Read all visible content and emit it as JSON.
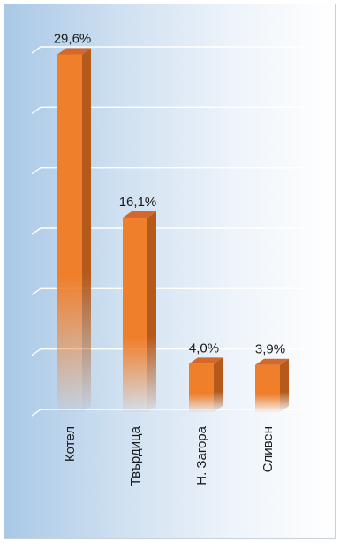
{
  "chart_data": {
    "type": "bar",
    "title": "",
    "xlabel": "",
    "ylabel": "",
    "categories": [
      "Котел",
      "Твърдица",
      "Н. Загора",
      "Сливен"
    ],
    "values": [
      29.6,
      16.1,
      4.0,
      3.9
    ],
    "data_labels": [
      "29,6%",
      "16,1%",
      "4,0%",
      "3,9%"
    ],
    "ylim": [
      0,
      30
    ],
    "grid": true,
    "legend": "none",
    "colors": {
      "bar": "#f07f2c",
      "bar_side": "#b55a1a",
      "bar_top": "#d4682a"
    }
  }
}
